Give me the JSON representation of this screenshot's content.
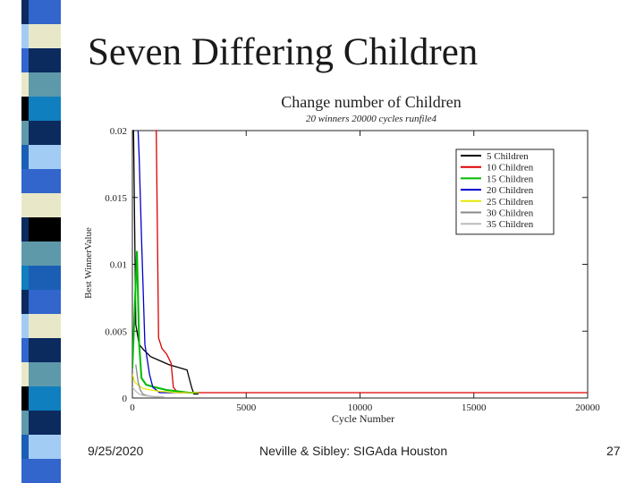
{
  "slide": {
    "title": "Seven Differing Children",
    "footer_date": "9/25/2020",
    "footer_center": "Neville & Sibley: SIGAda Houston",
    "page_number": "27"
  },
  "stripe_colors": [
    "#3366cc",
    "#e8e8c8",
    "#0b2a5e",
    "#5e99aa",
    "#0f7fbf",
    "#0b2a5e",
    "#a3ccf5",
    "#3366cc",
    "#e8e8c8",
    "#000000",
    "#5e99aa",
    "#1a5fb4"
  ],
  "chart_data": {
    "type": "line",
    "title": "Change number of Children",
    "subtitle": "20 winners 20000 cycles runfile4",
    "xlabel": "Cycle Number",
    "ylabel": "Best WinnerValue",
    "xlim": [
      0,
      20000
    ],
    "ylim": [
      0,
      0.02
    ],
    "xticks": [
      0,
      5000,
      10000,
      15000,
      20000
    ],
    "xtick_labels": [
      "0",
      "5000",
      "10000",
      "15000",
      "20000"
    ],
    "yticks": [
      0,
      0.005,
      0.01,
      0.015,
      0.02
    ],
    "ytick_labels": [
      "0",
      "0.005",
      "0.01",
      "0.015",
      "0.02"
    ],
    "legend_position": "top-right",
    "series": [
      {
        "name": "5 Children",
        "color": "#000000",
        "x": [
          0,
          50,
          150,
          300,
          500,
          800,
          1200,
          1600,
          2000,
          2400,
          2600,
          2700,
          2900
        ],
        "y": [
          0.02,
          0.02,
          0.0055,
          0.004,
          0.0036,
          0.0031,
          0.0028,
          0.0025,
          0.0023,
          0.0021,
          0.0008,
          0.0003,
          0.0003
        ]
      },
      {
        "name": "10 Children",
        "color": "#dd0000",
        "x": [
          1000,
          1050,
          1150,
          1300,
          1500,
          1700,
          1800,
          2000,
          2100,
          20000
        ],
        "y": [
          0.02,
          0.02,
          0.0045,
          0.0037,
          0.0033,
          0.0026,
          0.0008,
          0.0004,
          0.0004,
          0.0004
        ]
      },
      {
        "name": "15 Children",
        "color": "#00bb00",
        "x": [
          0,
          200,
          300,
          400,
          600,
          1000,
          1500,
          2000,
          2500,
          2900
        ],
        "y": [
          0.0022,
          0.011,
          0.004,
          0.0015,
          0.001,
          0.0008,
          0.0006,
          0.0005,
          0.0004,
          0.0004
        ]
      },
      {
        "name": "20 Children",
        "color": "#0000cc",
        "x": [
          250,
          300,
          400,
          550,
          750,
          900,
          1200,
          2900
        ],
        "y": [
          0.02,
          0.018,
          0.012,
          0.004,
          0.0018,
          0.0008,
          0.0004,
          0.0004
        ]
      },
      {
        "name": "25 Children",
        "color": "#e8e800",
        "x": [
          0,
          100,
          300,
          500,
          800,
          1200,
          2000,
          2900
        ],
        "y": [
          0.0018,
          0.0012,
          0.0009,
          0.0007,
          0.0006,
          0.0005,
          0.0004,
          0.0004
        ]
      },
      {
        "name": "30 Children",
        "color": "#888888",
        "x": [
          150,
          250,
          350,
          450,
          600,
          900,
          1200
        ],
        "y": [
          0.0025,
          0.0012,
          0.0006,
          0.0003,
          0.0002,
          0.0001,
          0.0001
        ]
      },
      {
        "name": "35 Children",
        "color": "#bbbbbb",
        "x": [
          0,
          150,
          300,
          450,
          700,
          1000,
          1400
        ],
        "y": [
          0.0008,
          0.0005,
          0.0003,
          0.0002,
          0.00015,
          0.0001,
          0.0001
        ]
      }
    ]
  }
}
